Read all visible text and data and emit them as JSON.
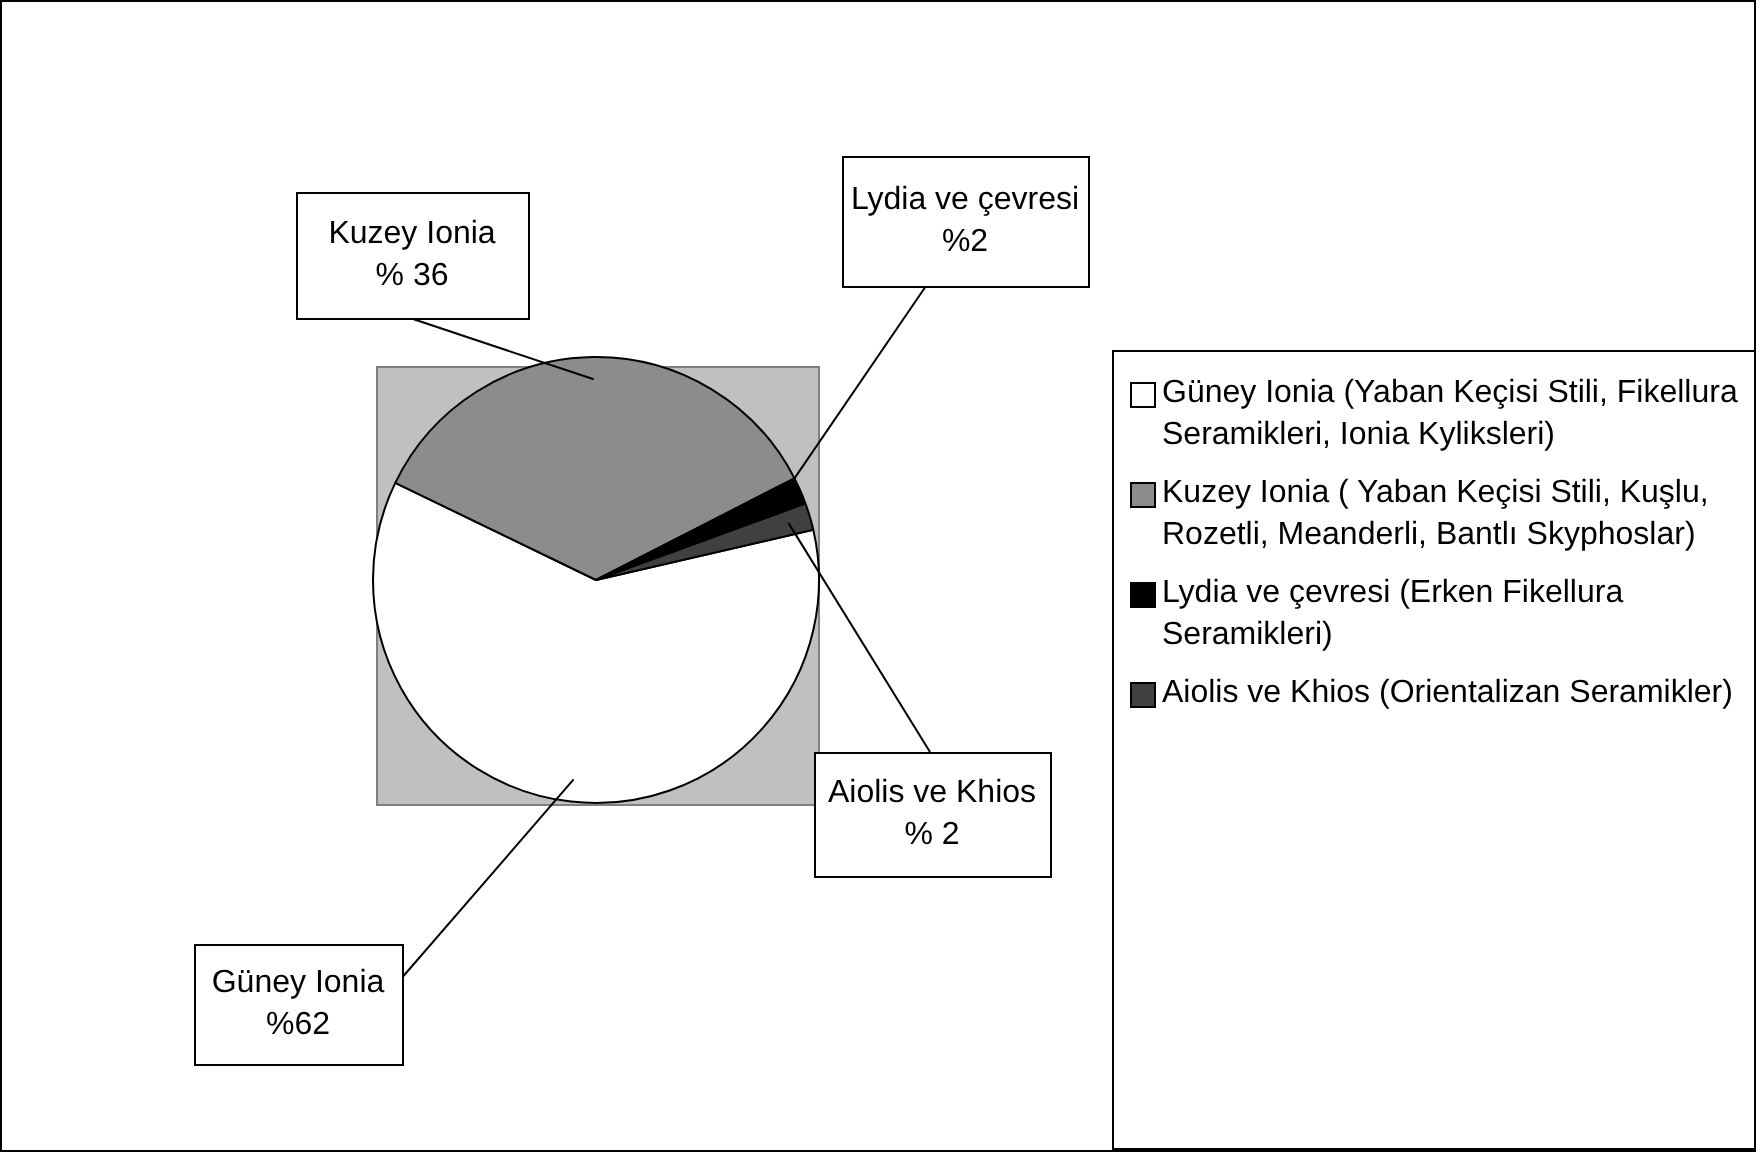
{
  "chart_data": {
    "type": "pie",
    "categories": [
      "Güney Ionia (Yaban Keçisi Stili, Fikellura Seramikleri, Ionia Kyliksleri)",
      "Kuzey Ionia ( Yaban Keçisi Stili, Kuşlu, Rozetli, Meanderli, Bantlı Skyphoslar)",
      "Lydia ve çevresi (Erken Fikellura Seramikleri)",
      "Aiolis ve Khios (Orientalizan Seramikler)"
    ],
    "values": [
      62,
      36,
      2,
      2
    ],
    "colors": [
      "#ffffff",
      "#8c8c8c",
      "#000000",
      "#404040"
    ],
    "value_labels": [
      "Güney Ionia\n%62",
      "Kuzey Ionia\n% 36",
      "Lydia ve çevresi\n%2",
      "Aiolis ve Khios\n% 2"
    ],
    "legend": "right"
  }
}
